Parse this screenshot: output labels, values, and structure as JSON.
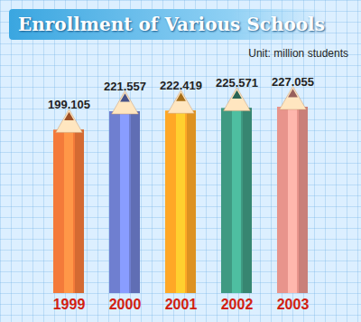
{
  "chart_data": {
    "type": "bar",
    "title": "Enrollment of Various Schools",
    "subtitle": "Unit: million students",
    "categories": [
      "1999",
      "2000",
      "2001",
      "2002",
      "2003"
    ],
    "values": [
      199.105,
      221.557,
      222.419,
      225.571,
      227.055
    ],
    "colors": [
      "#f47a3a",
      "#6f7fd0",
      "#ffa826",
      "#3f9a82",
      "#e8948c"
    ],
    "data_labels": true,
    "tick_labels": "x"
  }
}
